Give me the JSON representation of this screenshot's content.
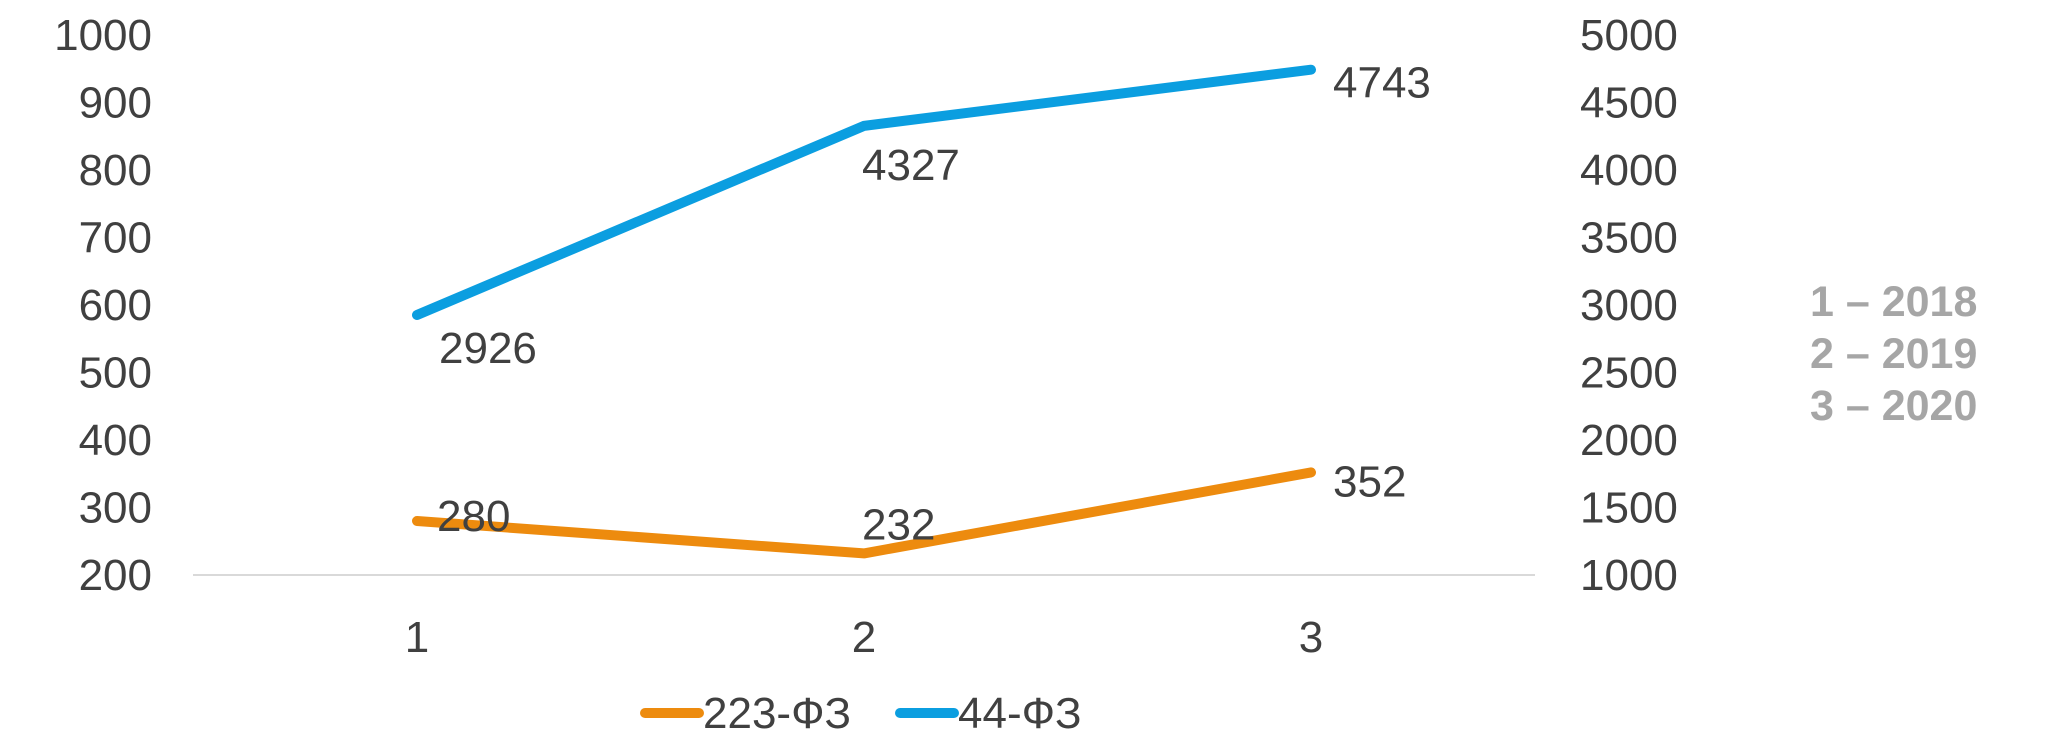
{
  "chart_data": {
    "type": "line",
    "categories": [
      "1",
      "2",
      "3"
    ],
    "y_left": {
      "ylim": [
        200,
        1000
      ],
      "ticks": [
        1000,
        900,
        800,
        700,
        600,
        500,
        400,
        300,
        200
      ]
    },
    "y_right": {
      "ylim": [
        1000,
        5000
      ],
      "ticks": [
        5000,
        4500,
        4000,
        3500,
        3000,
        2500,
        2000,
        1500,
        1000
      ]
    },
    "series": [
      {
        "name": "223-ФЗ",
        "axis": "left",
        "color": "#ed8b0e",
        "values": [
          280,
          232,
          352
        ]
      },
      {
        "name": "44-ФЗ",
        "axis": "right",
        "color": "#0b9ee0",
        "values": [
          2926,
          4327,
          4743
        ]
      }
    ],
    "legend": "bottom",
    "grid": false
  },
  "year_notes": [
    "1 – 2018",
    "2 – 2019",
    "3 – 2020"
  ]
}
